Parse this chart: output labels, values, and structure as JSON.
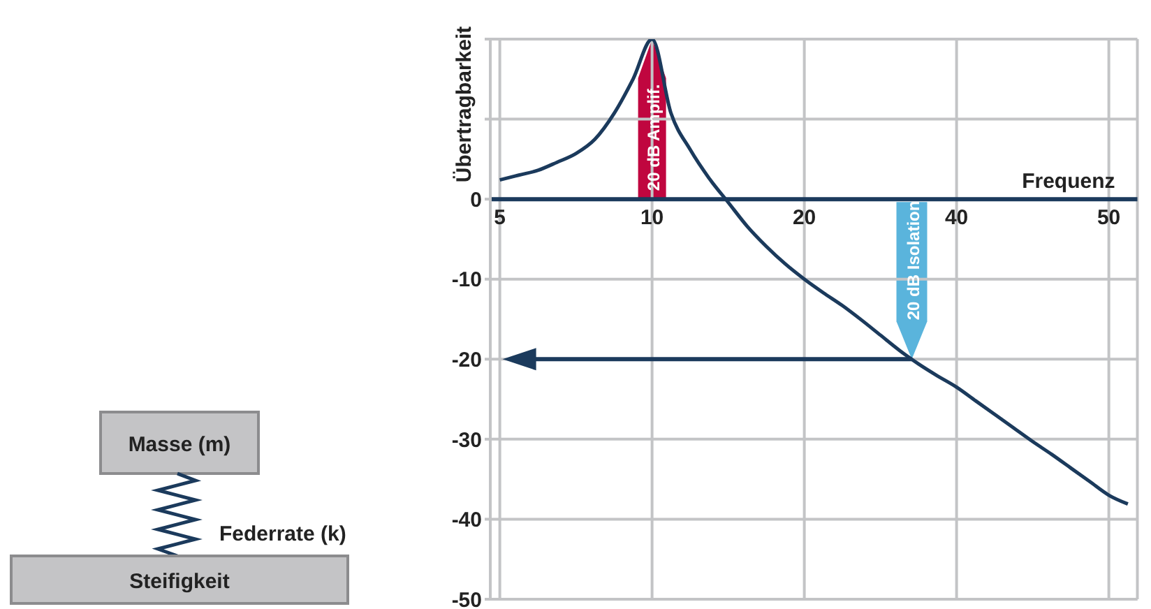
{
  "chart_data": {
    "type": "line",
    "xlabel": "Frequenz",
    "ylabel": "Übertragbarkeit",
    "categories": [
      "5",
      null,
      null,
      null,
      null,
      null,
      null,
      null,
      "10",
      null,
      null,
      null,
      null,
      null,
      null,
      null,
      "20",
      null,
      null,
      null,
      null,
      null,
      null,
      null,
      "40",
      null,
      null,
      null,
      null,
      null,
      null,
      null,
      "50",
      null
    ],
    "series": [
      {
        "color": "#1b3a5c",
        "values": [
          2.4,
          3,
          3.6,
          4.6,
          5.7,
          7.5,
          10.7,
          15,
          20,
          10.7,
          6.2,
          2.6,
          -0.4,
          -3.4,
          -5.9,
          -8.1,
          -10,
          -11.7,
          -13.3,
          -15.1,
          -17,
          -18.9,
          -20.6,
          -22.1,
          -23.5,
          -25.2,
          -26.9,
          -28.6,
          -30.3,
          -31.9,
          -33.6,
          -35.3,
          -37,
          -38.1
        ]
      }
    ],
    "ylim": [
      -50,
      20
    ],
    "yticks": [
      -50,
      -40,
      -30,
      -20,
      -10,
      0,
      {
        "value": 10,
        "label": null
      },
      {
        "value": 20,
        "label": null
      }
    ],
    "grid": true,
    "marker": "none",
    "line_style": "solid",
    "ref_lines": [
      {
        "axis": "y",
        "value": 0,
        "color": "#1b3a5c"
      }
    ],
    "annotations": [
      "Masse (m)",
      "Federrate (k)",
      "Steifigkeit",
      {
        "text": "20 dB Amplif.",
        "x": "10",
        "y": 20
      },
      {
        "text": "20 dB Isolation",
        "y": -20
      }
    ]
  }
}
